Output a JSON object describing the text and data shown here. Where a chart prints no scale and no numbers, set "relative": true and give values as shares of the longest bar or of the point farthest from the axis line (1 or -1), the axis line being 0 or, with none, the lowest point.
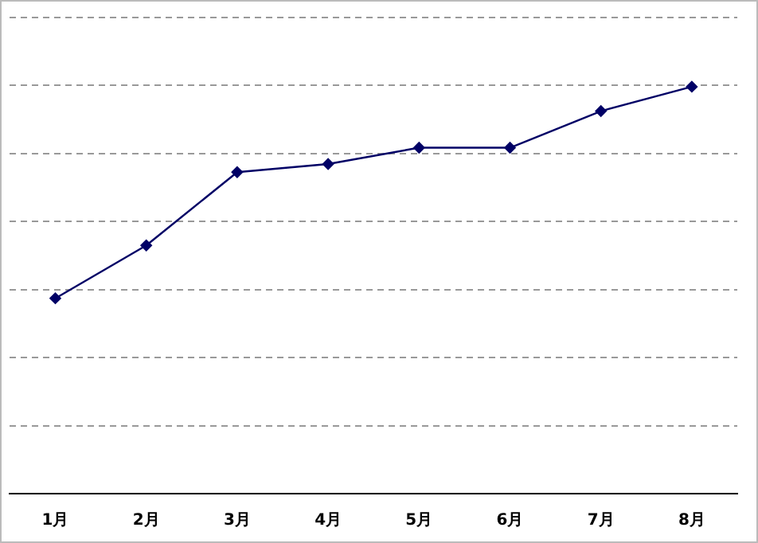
{
  "chart_data": {
    "type": "line",
    "relative": true,
    "categories": [
      "1月",
      "2月",
      "3月",
      "4月",
      "5月",
      "6月",
      "7月",
      "8月"
    ],
    "series": [
      {
        "color": "#000066",
        "values": [
          0.48,
          0.61,
          0.79,
          0.81,
          0.85,
          0.85,
          0.94,
          1
        ]
      }
    ],
    "grid": "y",
    "marker": "diamond",
    "line_style": "solid",
    "legend": false
  }
}
